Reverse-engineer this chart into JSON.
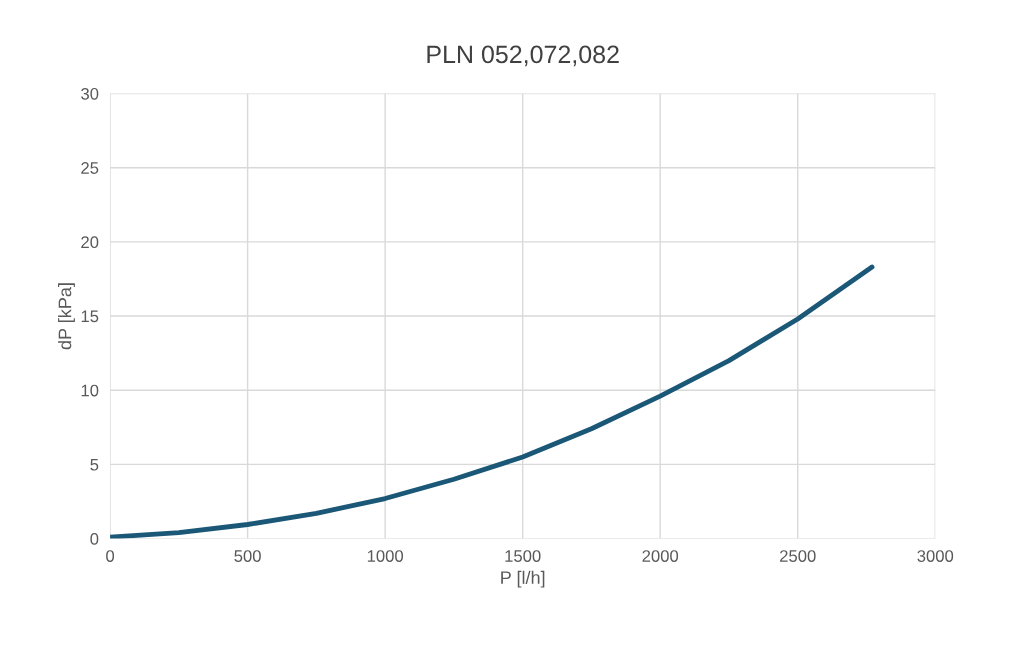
{
  "chart_data": {
    "type": "line",
    "title": "PLN 052,072,082",
    "xlabel": "P [l/h]",
    "ylabel": "dP [kPa]",
    "x": [
      0,
      250,
      500,
      750,
      1000,
      1250,
      1500,
      1750,
      2000,
      2250,
      2500,
      2770
    ],
    "series": [
      {
        "color": "#1b5878",
        "values": [
          0.1,
          0.4,
          0.95,
          1.7,
          2.7,
          4.0,
          5.5,
          7.4,
          9.6,
          12.0,
          14.8,
          18.3
        ]
      }
    ],
    "xlim": [
      0,
      3000
    ],
    "xticks": [
      0,
      500,
      1000,
      1500,
      2000,
      2500,
      3000
    ],
    "ylim": [
      0,
      30
    ],
    "yticks": [
      0,
      5,
      10,
      15,
      20,
      25,
      30
    ],
    "grid": true,
    "legend": false,
    "marker": "none",
    "line_style": "solid"
  }
}
